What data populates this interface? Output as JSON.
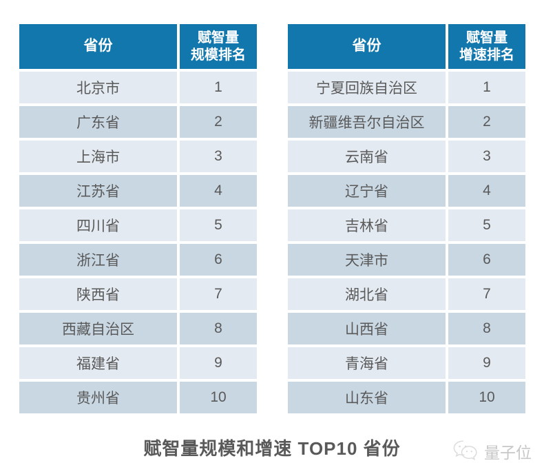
{
  "caption": "赋智量规模和增速 TOP10 省份",
  "watermark": {
    "label": "量子位",
    "icon": "wechat-icon"
  },
  "colors": {
    "header_bg": "#1277ad",
    "header_text": "#ffffff",
    "row_odd": "#e4eaf1",
    "row_even": "#c9d7e3",
    "cell_text": "#595959",
    "caption_text": "#595959",
    "watermark_text": "#c7c7c7"
  },
  "tables": [
    {
      "header": {
        "province_label": "省份",
        "rank_label_line1": "赋智量",
        "rank_label_line2": "规模排名"
      },
      "rows": [
        {
          "province": "北京市",
          "rank": "1"
        },
        {
          "province": "广东省",
          "rank": "2"
        },
        {
          "province": "上海市",
          "rank": "3"
        },
        {
          "province": "江苏省",
          "rank": "4"
        },
        {
          "province": "四川省",
          "rank": "5"
        },
        {
          "province": "浙江省",
          "rank": "6"
        },
        {
          "province": "陕西省",
          "rank": "7"
        },
        {
          "province": "西藏自治区",
          "rank": "8"
        },
        {
          "province": "福建省",
          "rank": "9"
        },
        {
          "province": "贵州省",
          "rank": "10"
        }
      ]
    },
    {
      "header": {
        "province_label": "省份",
        "rank_label_line1": "赋智量",
        "rank_label_line2": "增速排名"
      },
      "rows": [
        {
          "province": "宁夏回族自治区",
          "rank": "1"
        },
        {
          "province": "新疆维吾尔自治区",
          "rank": "2"
        },
        {
          "province": "云南省",
          "rank": "3"
        },
        {
          "province": "辽宁省",
          "rank": "4"
        },
        {
          "province": "吉林省",
          "rank": "5"
        },
        {
          "province": "天津市",
          "rank": "6"
        },
        {
          "province": "湖北省",
          "rank": "7"
        },
        {
          "province": "山西省",
          "rank": "8"
        },
        {
          "province": "青海省",
          "rank": "9"
        },
        {
          "province": "山东省",
          "rank": "10"
        }
      ]
    }
  ],
  "chart_data": [
    {
      "type": "table",
      "columns": [
        "省份",
        "赋智量规模排名"
      ],
      "rows": [
        [
          "北京市",
          1
        ],
        [
          "广东省",
          2
        ],
        [
          "上海市",
          3
        ],
        [
          "江苏省",
          4
        ],
        [
          "四川省",
          5
        ],
        [
          "浙江省",
          6
        ],
        [
          "陕西省",
          7
        ],
        [
          "西藏自治区",
          8
        ],
        [
          "福建省",
          9
        ],
        [
          "贵州省",
          10
        ]
      ]
    },
    {
      "type": "table",
      "columns": [
        "省份",
        "赋智量增速排名"
      ],
      "rows": [
        [
          "宁夏回族自治区",
          1
        ],
        [
          "新疆维吾尔自治区",
          2
        ],
        [
          "云南省",
          3
        ],
        [
          "辽宁省",
          4
        ],
        [
          "吉林省",
          5
        ],
        [
          "天津市",
          6
        ],
        [
          "湖北省",
          7
        ],
        [
          "山西省",
          8
        ],
        [
          "青海省",
          9
        ],
        [
          "山东省",
          10
        ]
      ]
    }
  ]
}
